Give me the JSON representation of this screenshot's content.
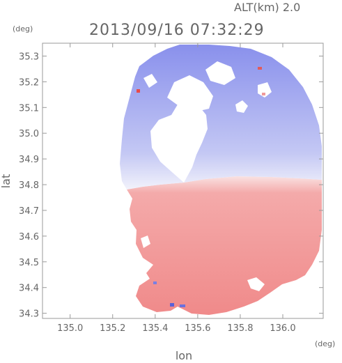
{
  "header": {
    "altitude_label": "ALT(km)  2.0",
    "datetime": "2013/09/16 07:32:29",
    "unit_y": "(deg)",
    "unit_x": "(deg)"
  },
  "chart_data": {
    "type": "heatmap",
    "title": "2013/09/16 07:32:29",
    "subtitle": "ALT(km)  2.0",
    "xlabel": "lon",
    "ylabel": "lat",
    "x_unit": "(deg)",
    "y_unit": "(deg)",
    "xlim": [
      134.87,
      136.19
    ],
    "ylim": [
      34.28,
      35.35
    ],
    "xticks": [
      135.0,
      135.2,
      135.4,
      135.6,
      135.8,
      136.0
    ],
    "xtick_labels": [
      "135.0",
      "135.2",
      "135.4",
      "135.6",
      "135.8",
      "136.0"
    ],
    "yticks": [
      34.3,
      34.4,
      34.5,
      34.6,
      34.7,
      34.8,
      34.9,
      35.0,
      35.1,
      35.2,
      35.3
    ],
    "ytick_labels": [
      "34.3",
      "34.4",
      "34.5",
      "34.6",
      "34.7",
      "34.8",
      "34.9",
      "35.0",
      "35.1",
      "35.2",
      "35.3"
    ],
    "radar_center": {
      "lon": 135.52,
      "lat": 34.82
    },
    "color_north": "#7f86ec",
    "color_south": "#f08f8f",
    "grid": false
  }
}
